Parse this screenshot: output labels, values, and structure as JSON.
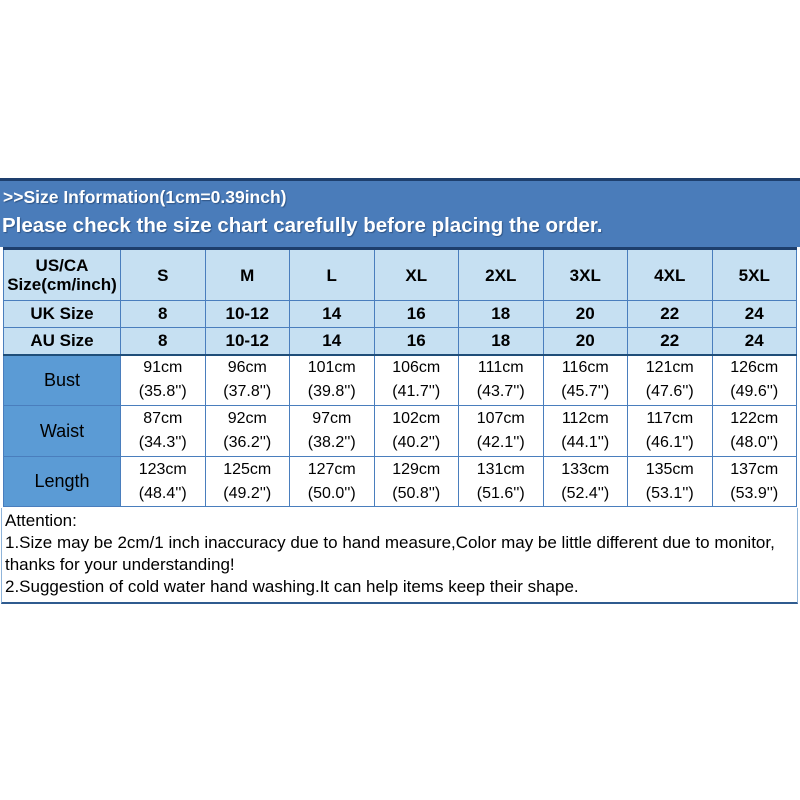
{
  "banner": {
    "title": ">>Size Information(1cm=0.39inch)",
    "subtitle": "Please check the size chart carefully before placing the order."
  },
  "colors": {
    "banner_bg": "#4a7cba",
    "banner_top_edge": "#1e3f6d",
    "table_header_bg": "#c6e0f2",
    "table_label_bg": "#5b9bd5",
    "table_grid_border": "#4a7ebd",
    "table_outer_border": "#2f5b8f",
    "banner_text": "#ffffff",
    "body_text": "#000000",
    "page_bg": "#ffffff"
  },
  "size_table": {
    "columns": [
      "US/CA Size(cm/inch)",
      "S",
      "M",
      "L",
      "XL",
      "2XL",
      "3XL",
      "4XL",
      "5XL"
    ],
    "size_rows": [
      {
        "label": "UK Size",
        "values": [
          "8",
          "10-12",
          "14",
          "16",
          "18",
          "20",
          "22",
          "24"
        ]
      },
      {
        "label": "AU Size",
        "values": [
          "8",
          "10-12",
          "14",
          "16",
          "18",
          "20",
          "22",
          "24"
        ]
      }
    ],
    "measure_rows": [
      {
        "label": "Bust",
        "cm": [
          "91cm",
          "96cm",
          "101cm",
          "106cm",
          "111cm",
          "116cm",
          "121cm",
          "126cm"
        ],
        "inch": [
          "(35.8'')",
          "(37.8'')",
          "(39.8'')",
          "(41.7'')",
          "(43.7'')",
          "(45.7'')",
          "(47.6'')",
          "(49.6'')"
        ]
      },
      {
        "label": "Waist",
        "cm": [
          "87cm",
          "92cm",
          "97cm",
          "102cm",
          "107cm",
          "112cm",
          "117cm",
          "122cm"
        ],
        "inch": [
          "(34.3'')",
          "(36.2'')",
          "(38.2'')",
          "(40.2'')",
          "(42.1'')",
          "(44.1'')",
          "(46.1'')",
          "(48.0'')"
        ]
      },
      {
        "label": "Length",
        "cm": [
          "123cm",
          "125cm",
          "127cm",
          "129cm",
          "131cm",
          "133cm",
          "135cm",
          "137cm"
        ],
        "inch": [
          "(48.4'')",
          "(49.2'')",
          "(50.0'')",
          "(50.8'')",
          "(51.6'')",
          "(52.4'')",
          "(53.1'')",
          "(53.9'')"
        ]
      }
    ]
  },
  "attention": {
    "heading": "Attention:",
    "lines": [
      "1.Size may be 2cm/1 inch inaccuracy due to hand measure,Color may be little different due to monitor,",
      "thanks for your understanding!",
      "2.Suggestion of cold water hand washing.It can help items keep their shape."
    ]
  }
}
